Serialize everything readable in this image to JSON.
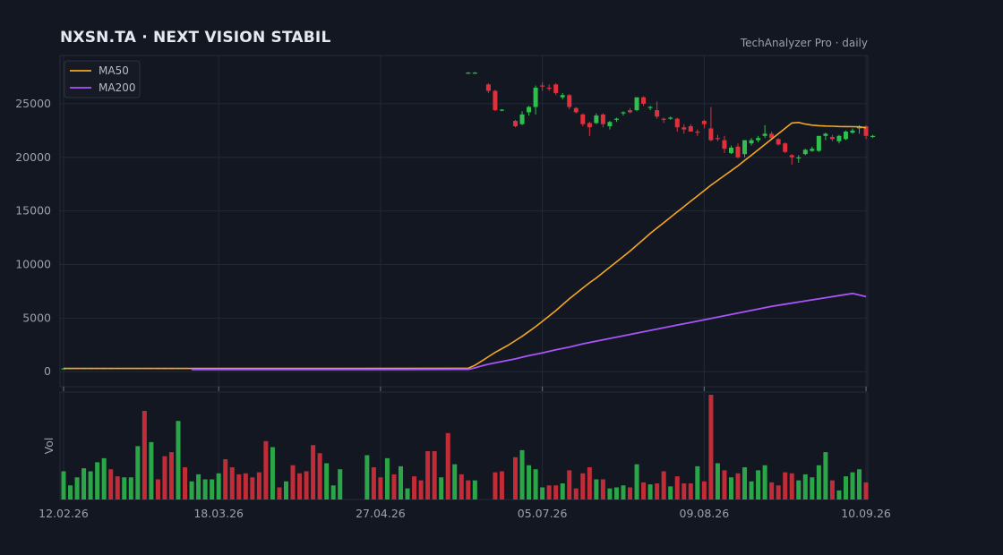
{
  "header": {
    "title": "NXSN.TA  ·  NEXT VISION STABIL",
    "subtitle": "TechAnalyzer Pro · daily"
  },
  "colors": {
    "background": "#131722",
    "up": "#2fbf4f",
    "down": "#e0303b",
    "ma50": "#f5a623",
    "ma200": "#a855f7",
    "grid": "#232836"
  },
  "chart_data": {
    "type": "candlestick",
    "title": "NXSN.TA  ·  NEXT VISION STABIL",
    "y_ticks": [
      "0",
      "5000",
      "10000",
      "15000",
      "20000",
      "25000"
    ],
    "ylim": [
      -1400,
      29500
    ],
    "x_ticks": [
      {
        "label": "12.02.26",
        "index": 0
      },
      {
        "label": "18.03.26",
        "index": 23
      },
      {
        "label": "27.04.26",
        "index": 47
      },
      {
        "label": "05.07.26",
        "index": 71
      },
      {
        "label": "09.08.26",
        "index": 95
      },
      {
        "label": "10.09.26",
        "index": 119
      }
    ],
    "volume_label": "Vol",
    "legend": [
      {
        "name": "MA50",
        "color": "#f5a623"
      },
      {
        "name": "MA200",
        "color": "#a855f7"
      }
    ],
    "candles": [
      [
        300,
        320,
        290,
        310
      ],
      [
        310,
        340,
        300,
        330
      ],
      [
        330,
        350,
        315,
        320
      ],
      [
        320,
        345,
        310,
        335
      ],
      [
        335,
        355,
        325,
        345
      ],
      [
        345,
        360,
        330,
        335
      ],
      [
        335,
        350,
        320,
        340
      ],
      [
        340,
        360,
        330,
        350
      ],
      [
        350,
        365,
        335,
        340
      ],
      [
        340,
        360,
        330,
        355
      ],
      [
        355,
        370,
        340,
        345
      ],
      [
        345,
        365,
        335,
        350
      ],
      [
        350,
        370,
        340,
        345
      ],
      [
        345,
        360,
        325,
        330
      ],
      [
        330,
        350,
        320,
        340
      ],
      [
        340,
        360,
        330,
        335
      ],
      [
        335,
        350,
        320,
        330
      ],
      [
        330,
        345,
        320,
        340
      ],
      [
        340,
        350,
        325,
        330
      ],
      [
        330,
        345,
        320,
        335
      ],
      [
        335,
        345,
        320,
        325
      ],
      [
        325,
        340,
        315,
        330
      ],
      [
        330,
        345,
        320,
        340
      ],
      [
        340,
        350,
        330,
        335
      ],
      [
        335,
        345,
        325,
        330
      ],
      [
        330,
        340,
        320,
        335
      ],
      [
        335,
        345,
        325,
        330
      ],
      [
        330,
        340,
        320,
        325
      ],
      [
        325,
        340,
        315,
        335
      ],
      [
        335,
        345,
        325,
        330
      ],
      [
        330,
        340,
        320,
        325
      ],
      [
        325,
        335,
        315,
        330
      ],
      [
        330,
        340,
        320,
        335
      ],
      [
        335,
        345,
        325,
        330
      ],
      [
        330,
        340,
        320,
        325
      ],
      [
        325,
        335,
        315,
        330
      ],
      [
        330,
        340,
        320,
        335
      ],
      [
        335,
        345,
        325,
        330
      ],
      [
        330,
        340,
        320,
        325
      ],
      [
        325,
        335,
        315,
        330
      ],
      [
        330,
        340,
        320,
        335
      ],
      [
        335,
        345,
        325,
        330
      ],
      [
        330,
        340,
        320,
        325
      ],
      [
        325,
        335,
        315,
        330
      ],
      [
        330,
        340,
        320,
        335
      ],
      [
        335,
        345,
        325,
        330
      ],
      [
        330,
        340,
        320,
        325
      ],
      [
        325,
        335,
        315,
        330
      ],
      [
        330,
        340,
        320,
        335
      ],
      [
        335,
        345,
        325,
        330
      ],
      [
        330,
        340,
        320,
        325
      ],
      [
        325,
        335,
        315,
        330
      ],
      [
        330,
        340,
        320,
        335
      ],
      [
        335,
        345,
        325,
        330
      ],
      [
        330,
        340,
        320,
        325
      ],
      [
        325,
        335,
        315,
        330
      ],
      [
        330,
        340,
        320,
        335
      ],
      [
        335,
        345,
        325,
        330
      ],
      [
        330,
        340,
        320,
        325
      ],
      [
        325,
        335,
        315,
        330
      ],
      [
        27900,
        27950,
        27850,
        27900
      ],
      [
        27900,
        27950,
        27850,
        27900
      ],
      null,
      [
        26800,
        26900,
        26000,
        26200
      ],
      [
        26200,
        26300,
        24300,
        24400
      ],
      [
        24400,
        24500,
        24300,
        24450
      ],
      null,
      [
        23400,
        23500,
        22800,
        22900
      ],
      [
        23100,
        24300,
        23000,
        24000
      ],
      [
        24200,
        24800,
        23900,
        24700
      ],
      [
        24700,
        26700,
        24000,
        26500
      ],
      [
        26700,
        27000,
        26200,
        26600
      ],
      [
        26500,
        26800,
        26200,
        26400
      ],
      [
        26800,
        26900,
        25800,
        26000
      ],
      [
        25600,
        26000,
        25400,
        25800
      ],
      [
        25800,
        25900,
        24500,
        24700
      ],
      [
        24600,
        24700,
        24100,
        24200
      ],
      [
        24000,
        24100,
        22900,
        23100
      ],
      [
        23200,
        23300,
        22000,
        22800
      ],
      [
        23200,
        24100,
        23100,
        23900
      ],
      [
        24000,
        24100,
        22800,
        23100
      ],
      [
        22900,
        23400,
        22600,
        23300
      ],
      [
        23500,
        23700,
        23300,
        23600
      ],
      [
        24100,
        24300,
        23900,
        24200
      ],
      [
        24400,
        24600,
        24100,
        24200
      ],
      [
        24400,
        25400,
        24300,
        25600
      ],
      [
        25600,
        25700,
        24800,
        25000
      ],
      [
        24600,
        24800,
        24400,
        24700
      ],
      [
        24400,
        25200,
        23600,
        23800
      ],
      [
        23600,
        23700,
        23200,
        23500
      ],
      [
        23600,
        23800,
        23500,
        23700
      ],
      [
        23600,
        23700,
        22400,
        22800
      ],
      [
        22800,
        23100,
        22200,
        22600
      ],
      [
        22900,
        23100,
        22500,
        22400
      ],
      [
        22400,
        22600,
        22000,
        22300
      ],
      [
        23400,
        23500,
        22700,
        23100
      ],
      [
        22700,
        24700,
        21500,
        21600
      ],
      [
        21800,
        22100,
        21500,
        21700
      ],
      [
        21600,
        22000,
        20400,
        20800
      ],
      [
        20400,
        21100,
        20300,
        20900
      ],
      [
        21000,
        21300,
        19900,
        20000
      ],
      [
        20300,
        21200,
        20000,
        21600
      ],
      [
        21300,
        21800,
        21100,
        21600
      ],
      [
        21600,
        22000,
        21400,
        21800
      ],
      [
        22000,
        23000,
        21800,
        22200
      ],
      [
        22200,
        22400,
        21700,
        21800
      ],
      [
        21700,
        21800,
        21100,
        21200
      ],
      [
        21300,
        21400,
        20400,
        20500
      ],
      [
        20200,
        20300,
        19300,
        20000
      ],
      [
        20000,
        20200,
        19500,
        20000
      ],
      [
        20300,
        20800,
        20200,
        20700
      ],
      [
        20600,
        21000,
        20500,
        20800
      ],
      [
        20600,
        21900,
        20500,
        22000
      ],
      [
        22000,
        22300,
        21600,
        22200
      ],
      [
        21900,
        22100,
        21500,
        21700
      ],
      [
        21500,
        22100,
        21300,
        22000
      ],
      [
        21700,
        22500,
        21600,
        22400
      ],
      [
        22300,
        22700,
        22200,
        22500
      ],
      [
        22700,
        23000,
        22200,
        22900
      ],
      [
        22900,
        23000,
        21700,
        22000
      ],
      [
        21900,
        22100,
        21800,
        22000
      ]
    ],
    "ma50": [
      [
        0,
        300
      ],
      [
        20,
        300
      ],
      [
        40,
        300
      ],
      [
        60,
        320
      ],
      [
        61,
        600
      ],
      [
        62,
        1000
      ],
      [
        63,
        1400
      ],
      [
        64,
        1800
      ],
      [
        65,
        2150
      ],
      [
        66,
        2500
      ],
      [
        67,
        2900
      ],
      [
        68,
        3300
      ],
      [
        69,
        3750
      ],
      [
        70,
        4200
      ],
      [
        71,
        4700
      ],
      [
        72,
        5200
      ],
      [
        73,
        5700
      ],
      [
        74,
        6250
      ],
      [
        75,
        6800
      ],
      [
        76,
        7300
      ],
      [
        77,
        7800
      ],
      [
        78,
        8300
      ],
      [
        79,
        8750
      ],
      [
        80,
        9250
      ],
      [
        81,
        9750
      ],
      [
        82,
        10250
      ],
      [
        83,
        10750
      ],
      [
        84,
        11250
      ],
      [
        85,
        11800
      ],
      [
        86,
        12350
      ],
      [
        87,
        12900
      ],
      [
        88,
        13400
      ],
      [
        89,
        13900
      ],
      [
        90,
        14400
      ],
      [
        91,
        14900
      ],
      [
        92,
        15400
      ],
      [
        93,
        15900
      ],
      [
        94,
        16400
      ],
      [
        95,
        16900
      ],
      [
        96,
        17400
      ],
      [
        97,
        17850
      ],
      [
        98,
        18300
      ],
      [
        99,
        18750
      ],
      [
        100,
        19200
      ],
      [
        101,
        19700
      ],
      [
        102,
        20200
      ],
      [
        103,
        20700
      ],
      [
        104,
        21200
      ],
      [
        105,
        21700
      ],
      [
        106,
        22200
      ],
      [
        107,
        22700
      ],
      [
        108,
        23200
      ],
      [
        109,
        23250
      ],
      [
        110,
        23100
      ],
      [
        111,
        23000
      ],
      [
        112,
        22950
      ],
      [
        113,
        22920
      ],
      [
        114,
        22900
      ],
      [
        115,
        22880
      ],
      [
        116,
        22870
      ],
      [
        117,
        22860
      ],
      [
        118,
        22840
      ],
      [
        119,
        22750
      ]
    ],
    "ma200": [
      [
        19,
        200
      ],
      [
        30,
        200
      ],
      [
        40,
        200
      ],
      [
        50,
        200
      ],
      [
        60,
        220
      ],
      [
        61,
        350
      ],
      [
        62,
        550
      ],
      [
        63,
        700
      ],
      [
        65,
        950
      ],
      [
        67,
        1200
      ],
      [
        69,
        1500
      ],
      [
        71,
        1750
      ],
      [
        73,
        2050
      ],
      [
        75,
        2300
      ],
      [
        77,
        2600
      ],
      [
        79,
        2850
      ],
      [
        81,
        3100
      ],
      [
        83,
        3350
      ],
      [
        85,
        3600
      ],
      [
        87,
        3850
      ],
      [
        89,
        4100
      ],
      [
        91,
        4350
      ],
      [
        93,
        4600
      ],
      [
        95,
        4850
      ],
      [
        97,
        5100
      ],
      [
        99,
        5350
      ],
      [
        101,
        5600
      ],
      [
        103,
        5850
      ],
      [
        105,
        6100
      ],
      [
        107,
        6300
      ],
      [
        109,
        6500
      ],
      [
        111,
        6700
      ],
      [
        113,
        6900
      ],
      [
        115,
        7100
      ],
      [
        117,
        7300
      ],
      [
        119,
        7000
      ]
    ],
    "volume": [
      [
        28,
        "up"
      ],
      [
        14,
        "up"
      ],
      [
        22,
        "up"
      ],
      [
        31,
        "up"
      ],
      [
        28,
        "up"
      ],
      [
        37,
        "up"
      ],
      [
        41,
        "up"
      ],
      [
        30,
        "down"
      ],
      [
        23,
        "down"
      ],
      [
        22,
        "up"
      ],
      [
        22,
        "up"
      ],
      [
        53,
        "up"
      ],
      [
        88,
        "down"
      ],
      [
        57,
        "up"
      ],
      [
        20,
        "down"
      ],
      [
        43,
        "down"
      ],
      [
        47,
        "down"
      ],
      [
        78,
        "up"
      ],
      [
        32,
        "down"
      ],
      [
        18,
        "up"
      ],
      [
        25,
        "up"
      ],
      [
        20,
        "up"
      ],
      [
        20,
        "up"
      ],
      [
        26,
        "up"
      ],
      [
        40,
        "down"
      ],
      [
        32,
        "down"
      ],
      [
        25,
        "down"
      ],
      [
        26,
        "down"
      ],
      [
        22,
        "down"
      ],
      [
        27,
        "down"
      ],
      [
        58,
        "down"
      ],
      [
        52,
        "up"
      ],
      [
        12,
        "down"
      ],
      [
        18,
        "up"
      ],
      [
        34,
        "down"
      ],
      [
        26,
        "down"
      ],
      [
        28,
        "down"
      ],
      [
        54,
        "down"
      ],
      [
        46,
        "down"
      ],
      [
        36,
        "up"
      ],
      [
        14,
        "up"
      ],
      [
        30,
        "up"
      ],
      [
        0,
        "up"
      ],
      [
        0,
        "up"
      ],
      [
        0,
        "up"
      ],
      [
        44,
        "up"
      ],
      [
        32,
        "down"
      ],
      [
        22,
        "down"
      ],
      [
        41,
        "up"
      ],
      [
        25,
        "down"
      ],
      [
        33,
        "up"
      ],
      [
        11,
        "up"
      ],
      [
        23,
        "down"
      ],
      [
        19,
        "down"
      ],
      [
        48,
        "down"
      ],
      [
        48,
        "down"
      ],
      [
        22,
        "up"
      ],
      [
        66,
        "down"
      ],
      [
        35,
        "up"
      ],
      [
        25,
        "down"
      ],
      [
        19,
        "down"
      ],
      [
        19,
        "up"
      ],
      [
        0,
        "up"
      ],
      [
        0,
        "up"
      ],
      [
        27,
        "down"
      ],
      [
        28,
        "down"
      ],
      [
        0,
        "up"
      ],
      [
        42,
        "down"
      ],
      [
        49,
        "up"
      ],
      [
        34,
        "up"
      ],
      [
        30,
        "up"
      ],
      [
        12,
        "up"
      ],
      [
        14,
        "down"
      ],
      [
        14,
        "down"
      ],
      [
        16,
        "up"
      ],
      [
        29,
        "down"
      ],
      [
        11,
        "down"
      ],
      [
        26,
        "down"
      ],
      [
        32,
        "down"
      ],
      [
        20,
        "up"
      ],
      [
        20,
        "down"
      ],
      [
        11,
        "up"
      ],
      [
        12,
        "up"
      ],
      [
        14,
        "up"
      ],
      [
        12,
        "down"
      ],
      [
        35,
        "up"
      ],
      [
        17,
        "down"
      ],
      [
        15,
        "up"
      ],
      [
        16,
        "down"
      ],
      [
        28,
        "down"
      ],
      [
        13,
        "up"
      ],
      [
        23,
        "down"
      ],
      [
        16,
        "down"
      ],
      [
        16,
        "down"
      ],
      [
        33,
        "up"
      ],
      [
        18,
        "down"
      ],
      [
        104,
        "down"
      ],
      [
        36,
        "up"
      ],
      [
        29,
        "down"
      ],
      [
        22,
        "up"
      ],
      [
        26,
        "down"
      ],
      [
        32,
        "up"
      ],
      [
        18,
        "up"
      ],
      [
        29,
        "up"
      ],
      [
        34,
        "up"
      ],
      [
        17,
        "down"
      ],
      [
        14,
        "down"
      ],
      [
        27,
        "down"
      ],
      [
        26,
        "down"
      ],
      [
        19,
        "up"
      ],
      [
        25,
        "up"
      ],
      [
        22,
        "up"
      ],
      [
        34,
        "up"
      ],
      [
        47,
        "up"
      ],
      [
        19,
        "down"
      ],
      [
        9,
        "up"
      ],
      [
        23,
        "up"
      ],
      [
        27,
        "up"
      ],
      [
        30,
        "up"
      ],
      [
        17,
        "down"
      ]
    ]
  }
}
